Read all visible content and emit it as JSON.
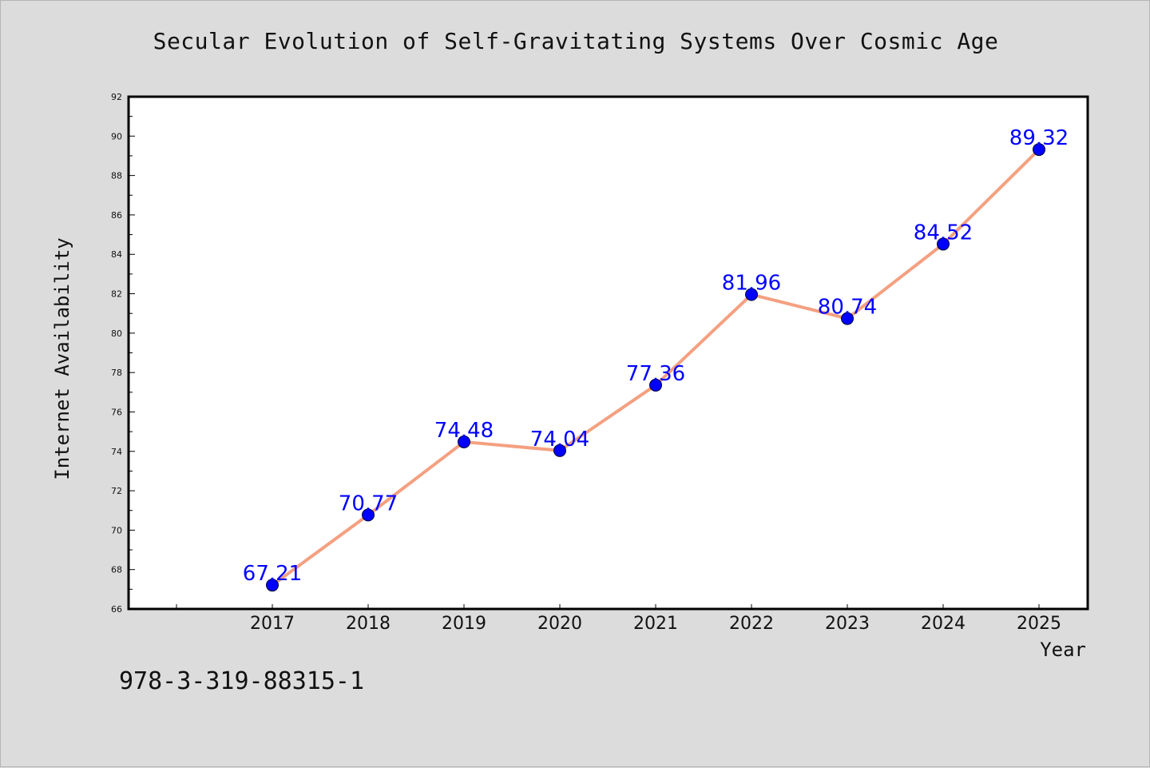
{
  "figure": {
    "title": "Secular Evolution of Self-Gravitating Systems Over Cosmic Age",
    "footnote": "978-3-319-88315-1"
  },
  "chart_data": {
    "type": "line",
    "title": "Secular Evolution of Self-Gravitating Systems Over Cosmic Age",
    "xlabel": "Year",
    "ylabel": "Internet Availability",
    "categories": [
      "2017",
      "2018",
      "2019",
      "2020",
      "2021",
      "2022",
      "2023",
      "2024",
      "2025"
    ],
    "series": [
      {
        "values": [
          67.21,
          70.77,
          74.48,
          74.04,
          77.36,
          81.96,
          80.74,
          84.52,
          89.32
        ],
        "data_labels": [
          "67.21",
          "70.77",
          "74.48",
          "74.04",
          "77.36",
          "81.96",
          "80.74",
          "84.52",
          "89.32"
        ],
        "line_color": "#f4a080",
        "marker_color": "#0000ff"
      }
    ],
    "ylim": [
      66,
      92
    ],
    "yticks": [
      "66",
      "68",
      "70",
      "72",
      "74",
      "76",
      "78",
      "80",
      "82",
      "84",
      "86",
      "88",
      "90",
      "92"
    ],
    "grid": false,
    "legend": "none"
  }
}
